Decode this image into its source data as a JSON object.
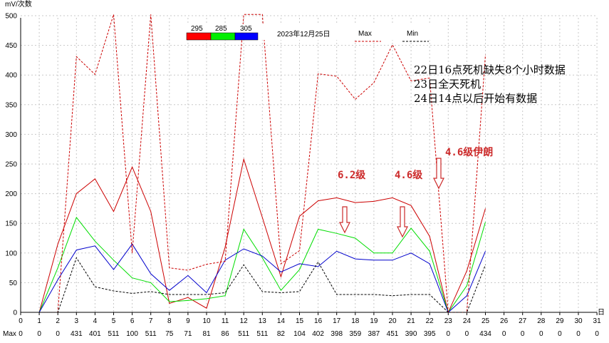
{
  "chart_data": {
    "type": "line",
    "ylabel": "mV/次数",
    "xlabel": "日",
    "xlim": [
      0,
      31
    ],
    "ylim": [
      0,
      500
    ],
    "x_ticks": [
      0,
      1,
      2,
      3,
      4,
      5,
      6,
      7,
      8,
      9,
      10,
      11,
      12,
      13,
      14,
      15,
      16,
      17,
      18,
      19,
      20,
      21,
      22,
      23,
      24,
      25,
      26,
      27,
      28,
      29,
      30,
      31
    ],
    "y_ticks": [
      0,
      50,
      100,
      150,
      200,
      250,
      300,
      350,
      400,
      450,
      500
    ],
    "grid": true,
    "date_label": "2023年12月25日",
    "legend": {
      "color_bar": [
        {
          "label": "295",
          "color": "#ff0000"
        },
        {
          "label": "285",
          "color": "#00ee00"
        },
        {
          "label": "305",
          "color": "#0000ff"
        }
      ],
      "max_label": "Max",
      "min_label": "Min"
    },
    "series": [
      {
        "name": "295",
        "color": "#cc0000",
        "style": "solid",
        "x": [
          1,
          2,
          3,
          4,
          5,
          6,
          7,
          8,
          9,
          10,
          11,
          12,
          13,
          14,
          15,
          16,
          17,
          18,
          19,
          20,
          21,
          22,
          23,
          24,
          25
        ],
        "y": [
          0,
          115,
          200,
          225,
          170,
          245,
          170,
          15,
          25,
          7,
          110,
          258,
          160,
          60,
          162,
          188,
          193,
          185,
          187,
          193,
          180,
          128,
          0,
          70,
          175
        ]
      },
      {
        "name": "285",
        "color": "#00dd00",
        "style": "solid",
        "x": [
          1,
          2,
          3,
          4,
          5,
          6,
          7,
          8,
          9,
          10,
          11,
          12,
          13,
          14,
          15,
          16,
          17,
          18,
          19,
          20,
          21,
          22,
          23,
          24,
          25
        ],
        "y": [
          0,
          75,
          160,
          120,
          88,
          58,
          50,
          18,
          20,
          23,
          28,
          140,
          92,
          37,
          72,
          140,
          133,
          125,
          100,
          100,
          142,
          103,
          0,
          45,
          152
        ]
      },
      {
        "name": "305",
        "color": "#0000cc",
        "style": "solid",
        "x": [
          1,
          2,
          3,
          4,
          5,
          6,
          7,
          8,
          9,
          10,
          11,
          12,
          13,
          14,
          15,
          16,
          17,
          18,
          19,
          20,
          21,
          22,
          23,
          24,
          25
        ],
        "y": [
          0,
          55,
          105,
          112,
          72,
          115,
          65,
          37,
          62,
          33,
          88,
          107,
          95,
          68,
          82,
          77,
          103,
          90,
          88,
          88,
          100,
          82,
          0,
          28,
          103
        ]
      },
      {
        "name": "Max",
        "color": "#cc0000",
        "style": "dashed",
        "x": [
          1,
          2,
          3,
          4,
          5,
          6,
          7,
          8,
          9,
          10,
          11,
          12,
          13,
          14,
          15,
          16,
          17,
          18,
          19,
          20,
          21,
          22,
          23,
          24,
          25
        ],
        "y": [
          0,
          0,
          431,
          401,
          511,
          100,
          511,
          75,
          71,
          81,
          86,
          511,
          511,
          82,
          104,
          402,
          398,
          359,
          387,
          451,
          390,
          395,
          0,
          0,
          434
        ]
      },
      {
        "name": "Min",
        "color": "#000000",
        "style": "dashed",
        "x": [
          1,
          2,
          3,
          4,
          5,
          6,
          7,
          8,
          9,
          10,
          11,
          12,
          13,
          14,
          15,
          16,
          17,
          18,
          19,
          20,
          21,
          22,
          23,
          24,
          25
        ],
        "y": [
          0,
          0,
          92,
          43,
          36,
          32,
          35,
          30,
          30,
          30,
          33,
          80,
          35,
          33,
          35,
          85,
          30,
          30,
          30,
          28,
          30,
          30,
          0,
          0,
          80
        ]
      }
    ],
    "max_row": {
      "label": "Max",
      "values": [
        0,
        0,
        0,
        431,
        401,
        511,
        100,
        511,
        75,
        71,
        81,
        86,
        511,
        511,
        82,
        104,
        402,
        398,
        359,
        387,
        451,
        390,
        395,
        0,
        0,
        434,
        0,
        0,
        0,
        0,
        0,
        0
      ]
    },
    "annotations": {
      "notes": [
        "22日16点死机缺失8个小时数据",
        "23日全天死机",
        "24日14点以后开始有数据"
      ],
      "magnitudes": [
        {
          "text": "6.2级",
          "x": 17.5
        },
        {
          "text": "4.6级",
          "x": 20.6
        },
        {
          "text": "4.6级伊朗",
          "x": 22.6
        }
      ]
    }
  }
}
